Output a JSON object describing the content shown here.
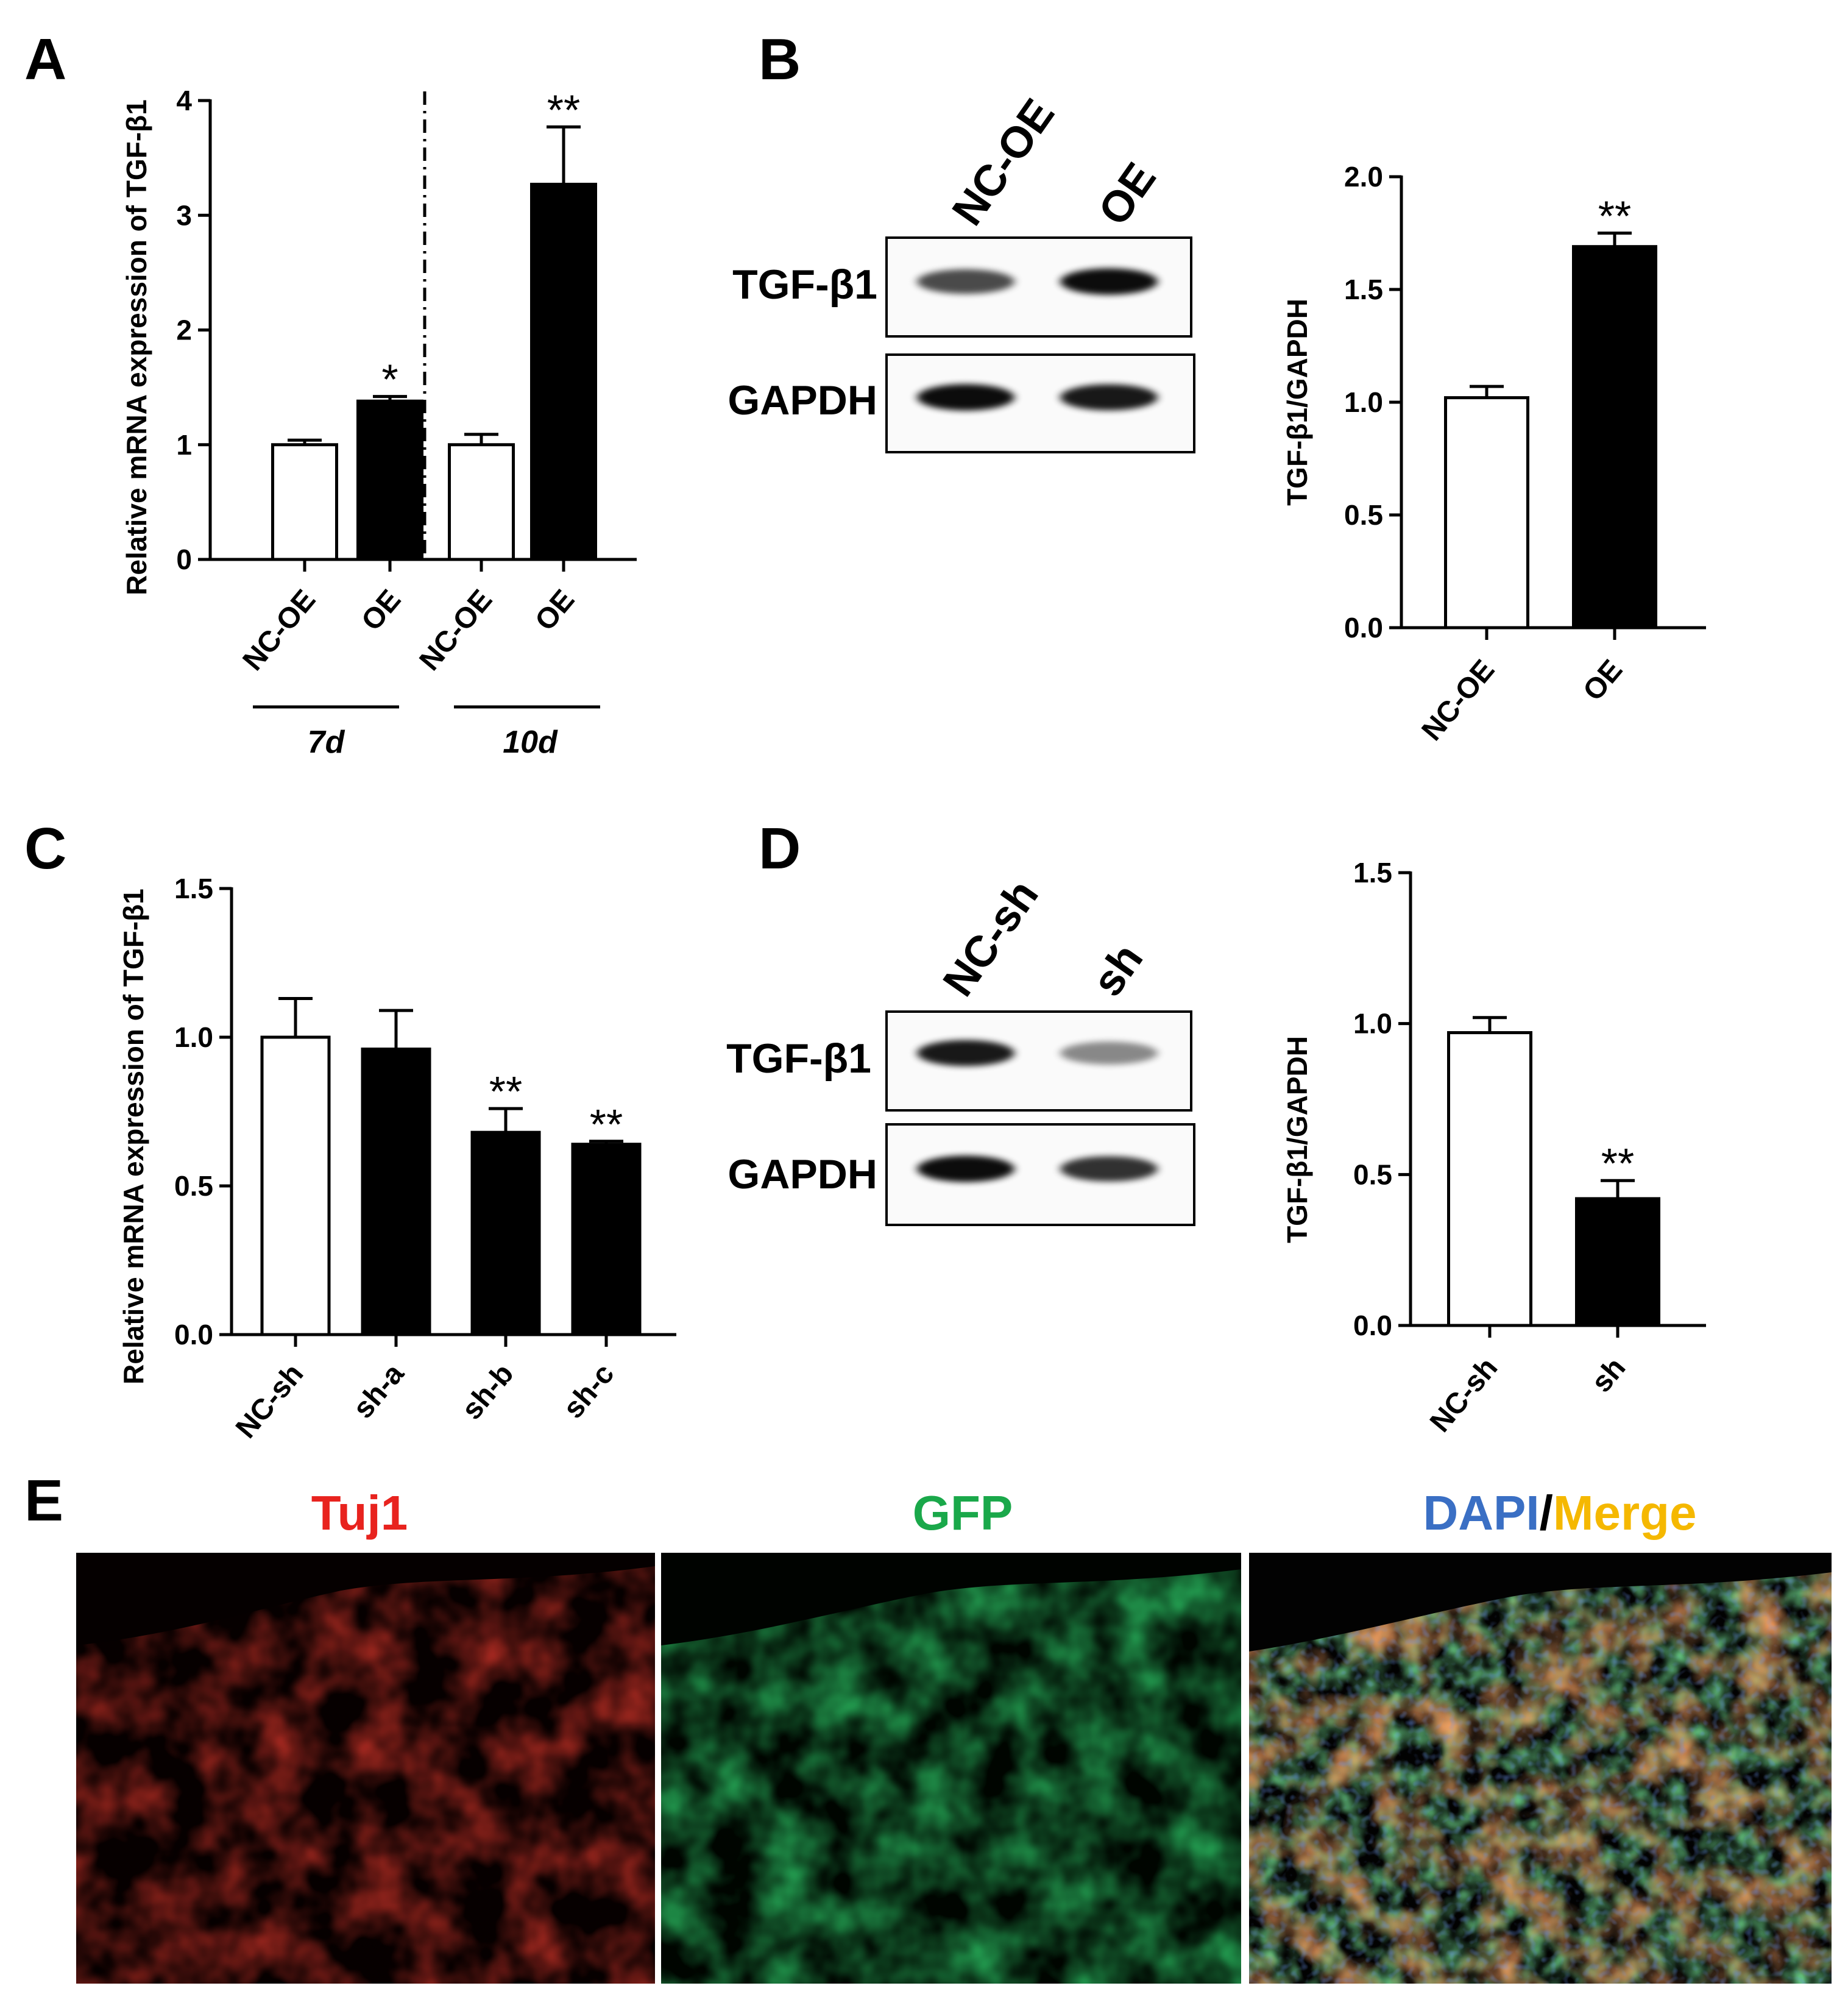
{
  "panels": {
    "A": "A",
    "B": "B",
    "C": "C",
    "D": "D",
    "E": "E"
  },
  "chart_data": [
    {
      "panel": "A",
      "type": "bar",
      "ylabel": "Relative mRNA expression of TGF-β1",
      "ylim": [
        0,
        4
      ],
      "yticks": [
        0,
        1,
        2,
        3,
        4
      ],
      "categories": [
        "NC-OE",
        "OE",
        "NC-OE",
        "OE"
      ],
      "groups": [
        {
          "label": "7d",
          "members": [
            0,
            1
          ]
        },
        {
          "label": "10d",
          "members": [
            2,
            3
          ]
        }
      ],
      "values": [
        1.0,
        1.38,
        1.0,
        3.27
      ],
      "errors": [
        0.04,
        0.04,
        0.09,
        0.5
      ],
      "fills": [
        "#ffffff",
        "#000000",
        "#ffffff",
        "#000000"
      ],
      "significance": [
        "",
        "*",
        "",
        "**"
      ],
      "divider": "dash-dot between groups"
    },
    {
      "panel": "B",
      "type": "bar",
      "ylabel": "TGF-β1/GAPDH",
      "ylim": [
        0,
        2.0
      ],
      "yticks": [
        "0.0",
        "0.5",
        "1.0",
        "1.5",
        "2.0"
      ],
      "categories": [
        "NC-OE",
        "OE"
      ],
      "values": [
        1.02,
        1.69
      ],
      "errors": [
        0.05,
        0.06
      ],
      "fills": [
        "#ffffff",
        "#000000"
      ],
      "significance": [
        "",
        "**"
      ]
    },
    {
      "panel": "C",
      "type": "bar",
      "ylabel": "Relative mRNA expression of TGF-β1",
      "ylim": [
        0,
        1.5
      ],
      "yticks": [
        "0.0",
        "0.5",
        "1.0",
        "1.5"
      ],
      "categories": [
        "NC-sh",
        "sh-a",
        "sh-b",
        "sh-c"
      ],
      "values": [
        1.0,
        0.96,
        0.68,
        0.64
      ],
      "errors": [
        0.13,
        0.13,
        0.08,
        0.01
      ],
      "fills": [
        "#ffffff",
        "#000000",
        "#000000",
        "#000000"
      ],
      "significance": [
        "",
        "",
        "**",
        "**"
      ]
    },
    {
      "panel": "D",
      "type": "bar",
      "ylabel": "TGF-β1/GAPDH",
      "ylim": [
        0,
        1.5
      ],
      "yticks": [
        "0.0",
        "0.5",
        "1.0",
        "1.5"
      ],
      "categories": [
        "NC-sh",
        "sh"
      ],
      "values": [
        0.97,
        0.42
      ],
      "errors": [
        0.05,
        0.06
      ],
      "fills": [
        "#ffffff",
        "#000000"
      ],
      "significance": [
        "",
        "**"
      ]
    }
  ],
  "blots": {
    "B": {
      "lanes": [
        "NC-OE",
        "OE"
      ],
      "rows": [
        "TGF-β1",
        "GAPDH"
      ],
      "intensities": [
        [
          0.7,
          0.95
        ],
        [
          0.95,
          0.9
        ]
      ]
    },
    "D": {
      "lanes": [
        "NC-sh",
        "sh"
      ],
      "rows": [
        "TGF-β1",
        "GAPDH"
      ],
      "intensities": [
        [
          0.9,
          0.45
        ],
        [
          0.95,
          0.8
        ]
      ]
    }
  },
  "if_panel": {
    "labels": {
      "tuj1": "Tuj1",
      "gfp": "GFP",
      "dapi": "DAPI",
      "slash": "/",
      "merge": "Merge"
    },
    "colors": {
      "tuj1": "#e8231e",
      "gfp": "#1aa84a",
      "dapi": "#3a6fc4",
      "merge": "#f5b800"
    }
  }
}
